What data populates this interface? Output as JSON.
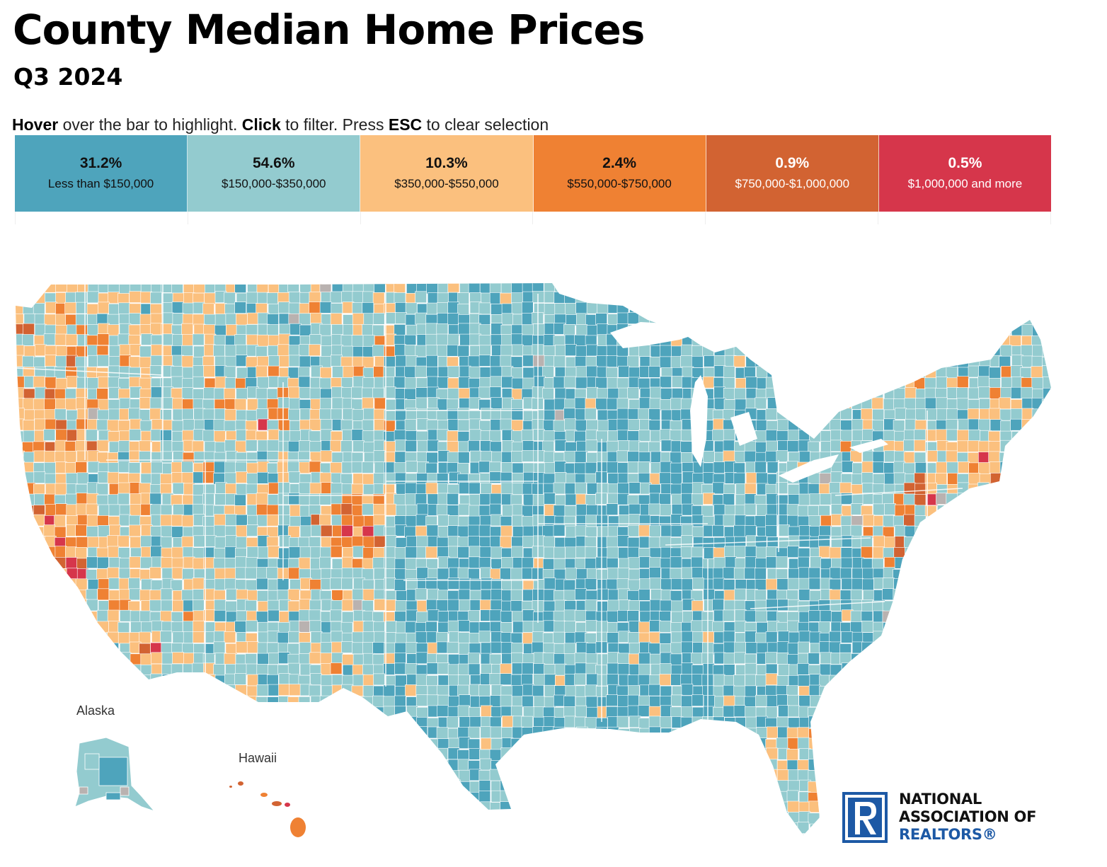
{
  "header": {
    "title": "County Median Home Prices",
    "subtitle": "Q3 2024"
  },
  "instructions": {
    "hover": "Hover",
    "hover_rest": " over the bar to highlight. ",
    "click": "Click",
    "click_rest": " to filter. Press ",
    "esc": "ESC",
    "esc_rest": " to clear selection"
  },
  "legend": {
    "bins": [
      {
        "pct": "31.2%",
        "range": "Less than $150,000",
        "color": "#4ea4bc",
        "text_color": "#111111"
      },
      {
        "pct": "54.6%",
        "range": "$150,000-$350,000",
        "color": "#93cbcf",
        "text_color": "#111111"
      },
      {
        "pct": "10.3%",
        "range": "$350,000-$550,000",
        "color": "#fbc07e",
        "text_color": "#111111"
      },
      {
        "pct": "2.4%",
        "range": "$550,000-$750,000",
        "color": "#ef8133",
        "text_color": "#111111"
      },
      {
        "pct": "0.9%",
        "range": "$750,000-$1,000,000",
        "color": "#d26332",
        "text_color": "#ffffff"
      },
      {
        "pct": "0.5%",
        "range": "$1,000,000 and more",
        "color": "#d6364b",
        "text_color": "#ffffff"
      }
    ],
    "no_data_color": "#b9b2b0"
  },
  "map": {
    "labels": {
      "alaska": "Alaska",
      "hawaii": "Hawaii"
    }
  },
  "logo": {
    "line1": "NATIONAL",
    "line2": "ASSOCIATION OF",
    "line3": "REALTORS®",
    "color": "#1d59a5"
  }
}
